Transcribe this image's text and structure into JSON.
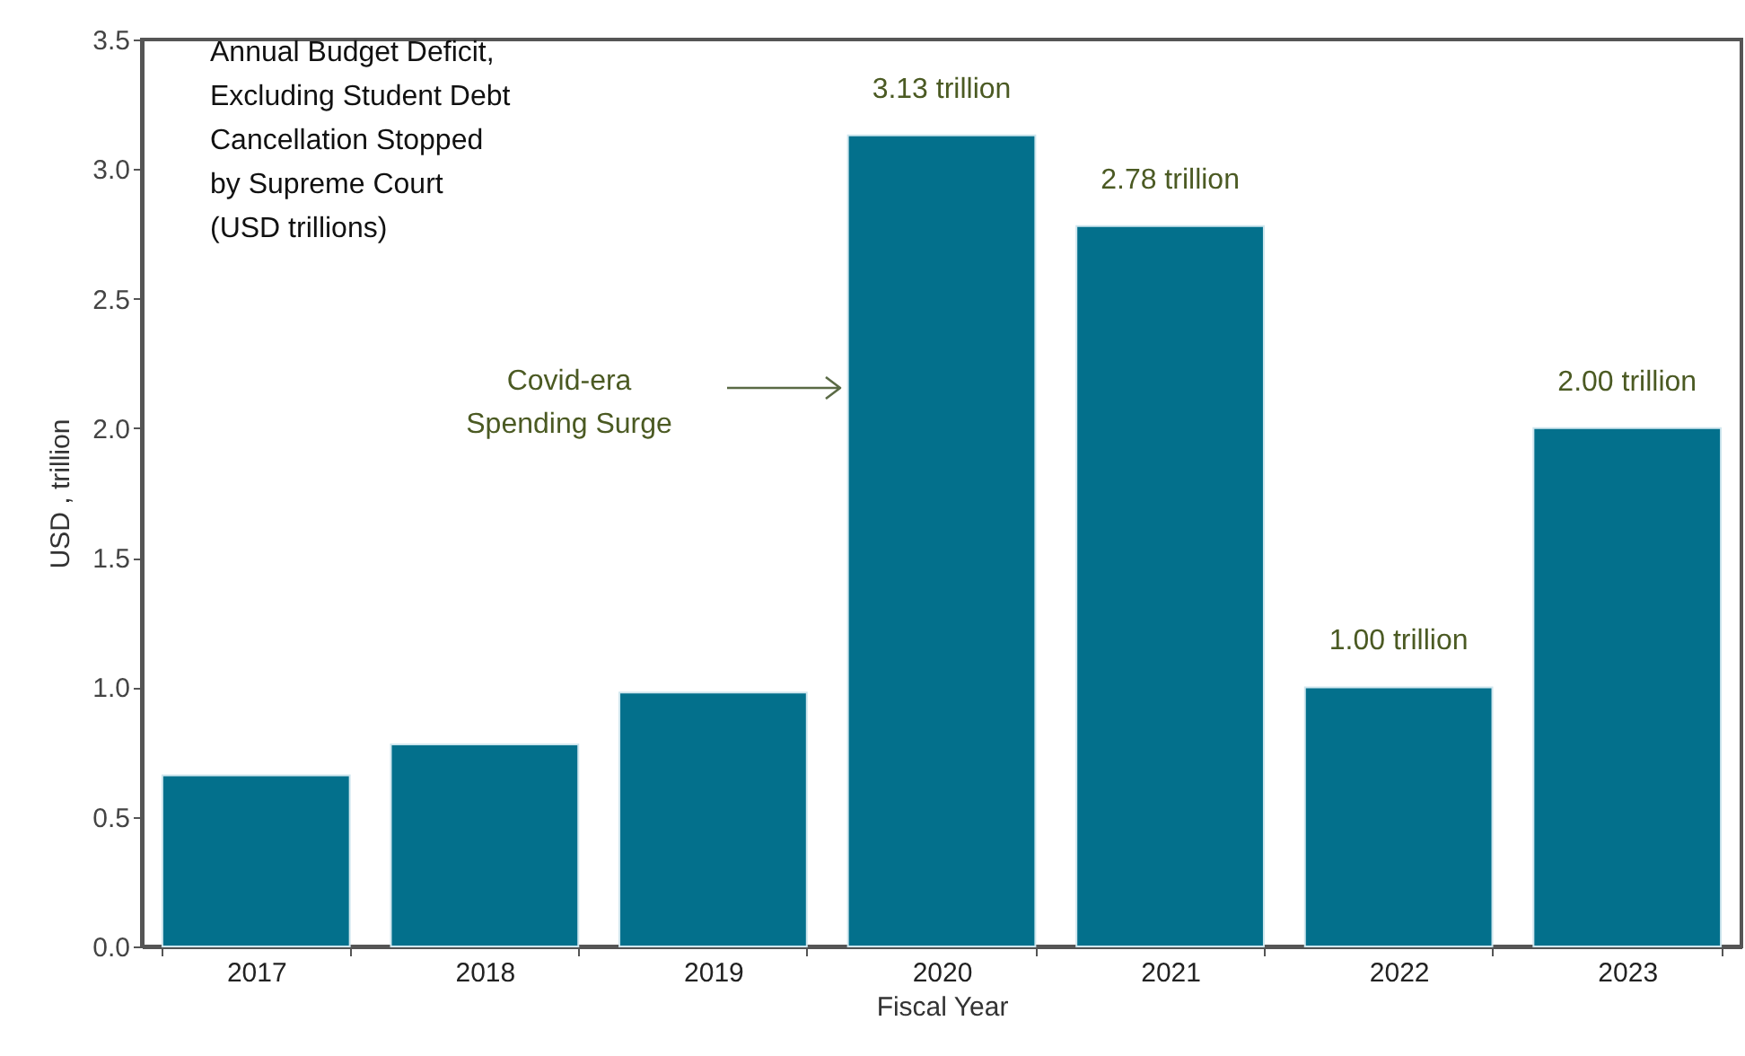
{
  "chart_data": {
    "type": "bar",
    "title": "Annual Budget Deficit,\nExcluding Student Debt\nCancellation Stopped\nby Supreme Court\n(USD trillions)",
    "xlabel": "Fiscal Year",
    "ylabel": "USD , trillion",
    "categories": [
      "2017",
      "2018",
      "2019",
      "2020",
      "2021",
      "2022",
      "2023"
    ],
    "values": [
      0.66,
      0.78,
      0.98,
      3.13,
      2.78,
      1.0,
      2.0
    ],
    "value_labels": [
      null,
      null,
      null,
      "3.13 trillion",
      "2.78 trillion",
      "1.00 trillion",
      "2.00 trillion"
    ],
    "color": "#03708c",
    "ylim": [
      0,
      3.5
    ],
    "yticks": [
      {
        "value": 0,
        "label": "0.0"
      },
      0.5,
      {
        "value": 1,
        "label": "1.0"
      },
      1.5,
      {
        "value": 2,
        "label": "2.0"
      },
      2.5,
      {
        "value": 3,
        "label": "3.0"
      },
      3.5
    ],
    "annotations": [
      "Covid-era\nSpending Surge"
    ],
    "grid": false
  }
}
